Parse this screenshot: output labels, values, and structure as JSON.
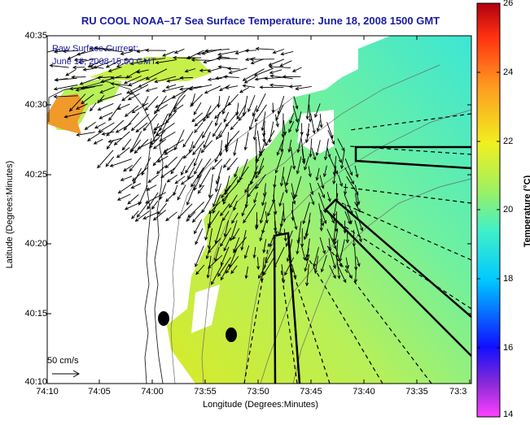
{
  "title": "RU COOL   NOAA–17  Sea Surface Temperature:  June 18, 2008 1500 GMT",
  "inset": {
    "line1": "Raw Surface Current:",
    "line2": "June 18, 2008 15:00 GMT"
  },
  "axes": {
    "xlabel": "Longitude (Degrees:Minutes)",
    "ylabel": "Latitude (Degrees:Minutes)",
    "x_ticks": [
      "74:10",
      "74:05",
      "74:00",
      "73:55",
      "73:50",
      "73:45",
      "73:40",
      "73:35",
      "73:3"
    ],
    "y_ticks": [
      "40:35",
      "40:30",
      "40:25",
      "40:20",
      "40:15",
      "40:10"
    ]
  },
  "colorbar": {
    "label": "Temperature (°C)",
    "ticks": [
      "26",
      "24",
      "22",
      "20",
      "18",
      "16",
      "14"
    ],
    "min": 14,
    "max": 26
  },
  "scale_label": "50 cm/s",
  "colors": {
    "title_text": "#1a1aa8",
    "sst_main": "#c8f04a",
    "sst_warm": "#f09a2a",
    "sst_cool": "#3ce6c4"
  }
}
